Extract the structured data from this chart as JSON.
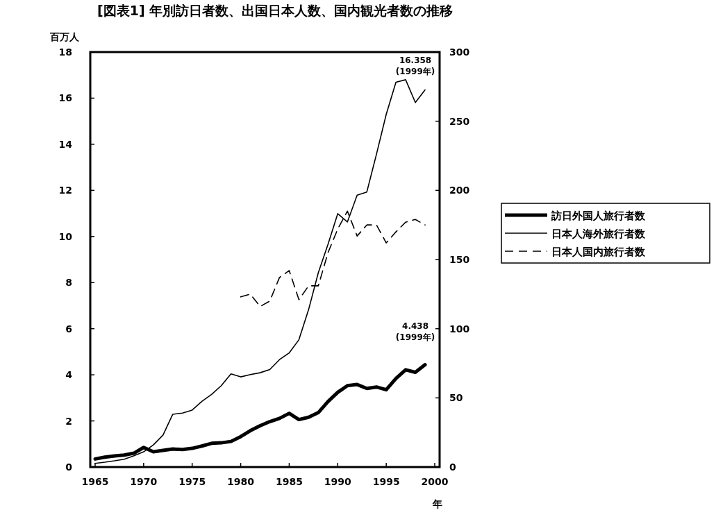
{
  "chart_data": {
    "type": "line",
    "title": "[図表1] 年別訪日者数、出国日本人数、国内観光者数の推移",
    "ylabel": "百万人",
    "xlabel": "年",
    "x": [
      1965,
      1966,
      1967,
      1968,
      1969,
      1970,
      1971,
      1972,
      1973,
      1974,
      1975,
      1976,
      1977,
      1978,
      1979,
      1980,
      1981,
      1982,
      1983,
      1984,
      1985,
      1986,
      1987,
      1988,
      1989,
      1990,
      1991,
      1992,
      1993,
      1994,
      1995,
      1996,
      1997,
      1998,
      1999
    ],
    "series": [
      {
        "name": "訪日外国人旅行者数",
        "color": "#000000",
        "line_style": "solid",
        "values": [
          0.35,
          0.43,
          0.48,
          0.52,
          0.6,
          0.85,
          0.66,
          0.72,
          0.78,
          0.76,
          0.81,
          0.91,
          1.03,
          1.05,
          1.11,
          1.32,
          1.58,
          1.79,
          1.97,
          2.11,
          2.33,
          2.06,
          2.16,
          2.36,
          2.84,
          3.24,
          3.53,
          3.58,
          3.41,
          3.47,
          3.35,
          3.84,
          4.22,
          4.11,
          4.438
        ]
      },
      {
        "name": "日本人海外旅行者数",
        "color": "#000000",
        "line_style": "solid",
        "values": [
          0.16,
          0.21,
          0.27,
          0.34,
          0.49,
          0.66,
          0.96,
          1.39,
          2.29,
          2.34,
          2.47,
          2.85,
          3.15,
          3.53,
          4.04,
          3.91,
          4.01,
          4.09,
          4.23,
          4.66,
          4.95,
          5.52,
          6.83,
          8.43,
          9.66,
          10.99,
          10.63,
          11.79,
          11.93,
          13.58,
          15.3,
          16.69,
          16.8,
          15.81,
          16.358
        ]
      },
      {
        "name": "日本人国内旅行者数",
        "color": "#000000",
        "line_style": "dashed",
        "axis": "y2",
        "x": [
          1980,
          1981,
          1982,
          1983,
          1984,
          1985,
          1986,
          1987,
          1988,
          1989,
          1990,
          1991,
          1992,
          1993,
          1994,
          1995,
          1996,
          1997,
          1998,
          1999
        ],
        "values": [
          123,
          125,
          116,
          120,
          137,
          142,
          121,
          131,
          131,
          155,
          172,
          185,
          167,
          175,
          175,
          162,
          170,
          177,
          179,
          175
        ]
      }
    ],
    "xlim": [
      1964.5,
      2000.5
    ],
    "xticks": [
      1965,
      1970,
      1975,
      1980,
      1985,
      1990,
      1995,
      2000
    ],
    "ylim": [
      0,
      18
    ],
    "yticks": [
      0,
      2,
      4,
      6,
      8,
      10,
      12,
      14,
      16,
      18
    ],
    "y2lim": [
      0,
      300
    ],
    "y2ticks": [
      0,
      50,
      100,
      150,
      200,
      250,
      300
    ],
    "annotations": [
      {
        "text": "16.358\n(1999年)",
        "x": 1999,
        "y": 16.358
      },
      {
        "text": "4.438\n(1999年)",
        "x": 1999,
        "y": 4.438
      }
    ],
    "legend": "right",
    "grid": false
  }
}
